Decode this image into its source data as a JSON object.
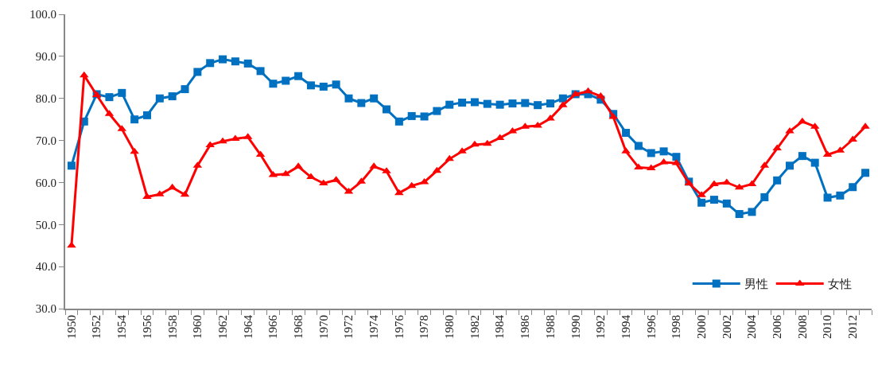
{
  "chart_data": {
    "type": "line",
    "categories": [
      "1950",
      null,
      "1952",
      null,
      "1954",
      null,
      "1956",
      null,
      "1958",
      null,
      "1960",
      null,
      "1962",
      null,
      "1964",
      null,
      "1966",
      null,
      "1968",
      null,
      "1970",
      null,
      "1972",
      null,
      "1974",
      null,
      "1976",
      null,
      "1978",
      null,
      "1980",
      null,
      "1982",
      null,
      "1984",
      null,
      "1986",
      null,
      "1988",
      null,
      "1990",
      null,
      "1992",
      null,
      "1994",
      null,
      "1996",
      null,
      "1998",
      null,
      "2000",
      null,
      "2002",
      null,
      "2004",
      null,
      "2006",
      null,
      "2008",
      null,
      "2010",
      null,
      "2012",
      null
    ],
    "series": [
      {
        "name": "男性",
        "color": "#0070c0",
        "marker": "square",
        "values": [
          64.0,
          74.5,
          81.0,
          80.3,
          81.3,
          75.0,
          76.0,
          80.0,
          80.5,
          82.2,
          86.3,
          88.4,
          89.3,
          88.8,
          88.3,
          86.5,
          83.5,
          84.2,
          85.3,
          83.1,
          82.8,
          83.3,
          80.0,
          78.9,
          80.0,
          77.4,
          74.5,
          75.8,
          75.7,
          77.0,
          78.5,
          79.0,
          79.1,
          78.7,
          78.5,
          78.8,
          78.9,
          78.4,
          78.8,
          80.0,
          81.0,
          81.0,
          79.7,
          76.3,
          71.8,
          68.7,
          67.0,
          67.4,
          66.1,
          60.2,
          55.2,
          55.9,
          55.0,
          52.5,
          53.0,
          56.5,
          60.5,
          64.0,
          66.3,
          64.7,
          56.4,
          56.9,
          58.9,
          62.3
        ]
      },
      {
        "name": "女性",
        "color": "#ff0000",
        "marker": "triangle",
        "values": [
          45.0,
          85.5,
          80.8,
          76.3,
          72.7,
          67.3,
          56.6,
          57.2,
          58.8,
          57.1,
          64.0,
          68.9,
          69.8,
          70.4,
          70.8,
          66.6,
          61.8,
          62.0,
          63.8,
          61.3,
          59.8,
          60.6,
          57.8,
          60.2,
          63.8,
          62.7,
          57.5,
          59.2,
          60.1,
          62.8,
          65.6,
          67.4,
          69.0,
          69.2,
          70.6,
          72.2,
          73.3,
          73.5,
          75.2,
          78.4,
          81.0,
          81.7,
          80.5,
          75.6,
          67.4,
          63.6,
          63.4,
          64.8,
          64.6,
          59.8,
          57.0,
          59.6,
          60.0,
          58.8,
          59.6,
          64.0,
          68.1,
          72.2,
          74.5,
          73.3,
          66.6,
          67.6,
          70.2,
          73.3
        ]
      }
    ],
    "ylim": [
      30,
      100
    ],
    "yticks": [
      {
        "value": 30,
        "label": "30.0"
      },
      {
        "value": 40,
        "label": "40.0"
      },
      {
        "value": 50,
        "label": "50.0"
      },
      {
        "value": 60,
        "label": "60.0"
      },
      {
        "value": 70,
        "label": "70.0"
      },
      {
        "value": 80,
        "label": "80.0"
      },
      {
        "value": 90,
        "label": "90.0"
      },
      {
        "value": 100,
        "label": "100.0"
      }
    ],
    "legend": "bottom right",
    "line_style": "solid"
  }
}
